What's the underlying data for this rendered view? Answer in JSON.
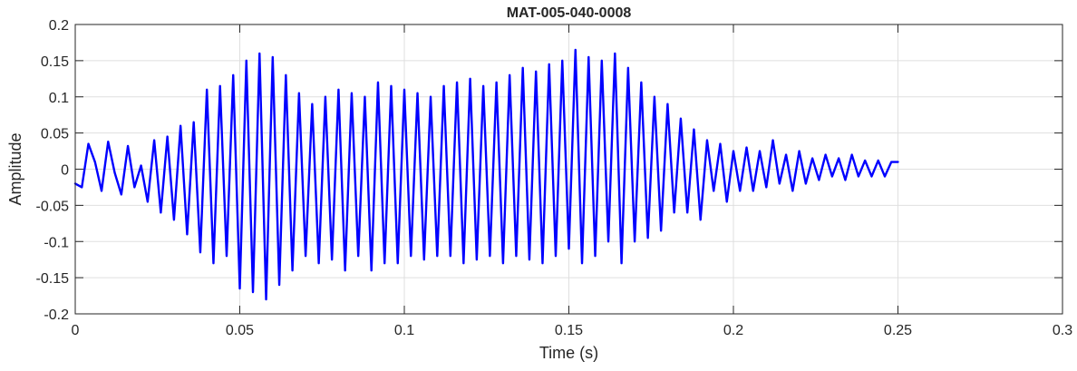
{
  "chart_data": {
    "type": "line",
    "title": "MAT-005-040-0008",
    "xlabel": "Time (s)",
    "ylabel": "Amplitude",
    "xlim": [
      0,
      0.3
    ],
    "ylim": [
      -0.2,
      0.2
    ],
    "x_ticks": [
      0,
      0.05,
      0.1,
      0.15,
      0.2,
      0.25,
      0.3
    ],
    "x_tick_labels": [
      "0",
      "0.05",
      "0.1",
      "0.15",
      "0.2",
      "0.25",
      "0.3"
    ],
    "y_ticks": [
      0.2,
      0.15,
      0.1,
      0.05,
      0,
      -0.05,
      -0.1,
      -0.15,
      -0.2
    ],
    "y_tick_labels": [
      "0.2",
      "0.15",
      "0.1",
      "0.05",
      "0",
      "-0.05",
      "-0.1",
      "-0.15",
      "-0.2"
    ],
    "grid": true,
    "legend": "none",
    "series": [
      {
        "color": "#0000ff",
        "x": [
          0,
          0.002,
          0.004,
          0.006,
          0.008,
          0.01,
          0.012,
          0.014,
          0.016,
          0.018,
          0.02,
          0.022,
          0.024,
          0.026,
          0.028,
          0.03,
          0.032,
          0.034,
          0.036,
          0.038,
          0.04,
          0.042,
          0.044,
          0.046,
          0.048,
          0.05,
          0.052,
          0.054,
          0.056,
          0.058,
          0.06,
          0.062,
          0.064,
          0.066,
          0.068,
          0.07,
          0.072,
          0.074,
          0.076,
          0.078,
          0.08,
          0.082,
          0.084,
          0.086,
          0.088,
          0.09,
          0.092,
          0.094,
          0.096,
          0.098,
          0.1,
          0.102,
          0.104,
          0.106,
          0.108,
          0.11,
          0.112,
          0.114,
          0.116,
          0.118,
          0.12,
          0.122,
          0.124,
          0.126,
          0.128,
          0.13,
          0.132,
          0.134,
          0.136,
          0.138,
          0.14,
          0.142,
          0.144,
          0.146,
          0.148,
          0.15,
          0.152,
          0.154,
          0.156,
          0.158,
          0.16,
          0.162,
          0.164,
          0.166,
          0.168,
          0.17,
          0.172,
          0.174,
          0.176,
          0.178,
          0.18,
          0.182,
          0.184,
          0.186,
          0.188,
          0.19,
          0.192,
          0.194,
          0.196,
          0.198,
          0.2,
          0.202,
          0.204,
          0.206,
          0.208,
          0.21,
          0.212,
          0.214,
          0.216,
          0.218,
          0.22,
          0.222,
          0.224,
          0.226,
          0.228,
          0.23,
          0.232,
          0.234,
          0.236,
          0.238,
          0.24,
          0.242,
          0.244,
          0.246,
          0.248,
          0.25
        ],
        "y": [
          -0.02,
          -0.025,
          0.035,
          0.01,
          -0.03,
          0.038,
          -0.005,
          -0.035,
          0.032,
          -0.025,
          0.005,
          -0.045,
          0.04,
          -0.06,
          0.045,
          -0.07,
          0.06,
          -0.09,
          0.065,
          -0.115,
          0.11,
          -0.13,
          0.115,
          -0.12,
          0.13,
          -0.165,
          0.15,
          -0.17,
          0.16,
          -0.18,
          0.155,
          -0.16,
          0.13,
          -0.14,
          0.105,
          -0.12,
          0.09,
          -0.13,
          0.1,
          -0.125,
          0.11,
          -0.14,
          0.105,
          -0.12,
          0.1,
          -0.14,
          0.12,
          -0.13,
          0.115,
          -0.13,
          0.11,
          -0.12,
          0.105,
          -0.125,
          0.1,
          -0.12,
          0.115,
          -0.12,
          0.12,
          -0.13,
          0.125,
          -0.125,
          0.115,
          -0.12,
          0.12,
          -0.13,
          0.13,
          -0.12,
          0.14,
          -0.125,
          0.135,
          -0.13,
          0.145,
          -0.12,
          0.15,
          -0.11,
          0.165,
          -0.13,
          0.155,
          -0.12,
          0.15,
          -0.1,
          0.16,
          -0.13,
          0.14,
          -0.1,
          0.12,
          -0.095,
          0.1,
          -0.085,
          0.09,
          -0.06,
          0.07,
          -0.06,
          0.055,
          -0.07,
          0.04,
          -0.03,
          0.035,
          -0.045,
          0.025,
          -0.03,
          0.03,
          -0.03,
          0.025,
          -0.025,
          0.04,
          -0.02,
          0.02,
          -0.03,
          0.025,
          -0.02,
          0.015,
          -0.015,
          0.02,
          -0.01,
          0.015,
          -0.015,
          0.02,
          -0.01,
          0.012,
          -0.01,
          0.012,
          -0.01,
          0.01,
          0.01
        ]
      }
    ]
  }
}
